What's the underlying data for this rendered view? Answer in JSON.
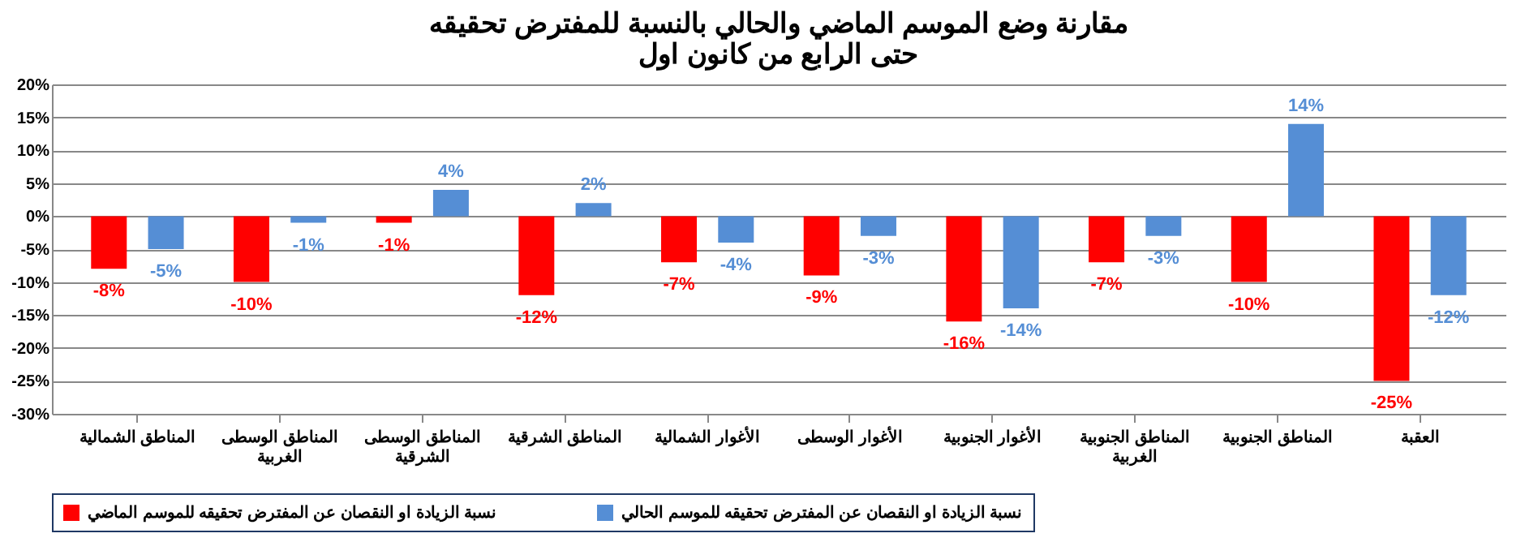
{
  "chart_data": {
    "type": "bar",
    "title": [
      "مقارنة وضع الموسم الماضي والحالي بالنسبة للمفترض تحقيقه",
      "حتى الرابع من كانون اول"
    ],
    "categories": [
      "المناطق الشمالية",
      "المناطق الوسطى الغربية",
      "المناطق الوسطى الشرقية",
      "المناطق الشرقية",
      "الأغوار الشمالية",
      "الأغوار الوسطى",
      "الأغوار الجنوبية",
      "المناطق الجنوبية الغربية",
      "المناطق الجنوبية",
      "العقبة"
    ],
    "series": [
      {
        "name": "نسبة الزيادة او النقصان عن المفترض تحقيقه للموسم الماضي",
        "color": "#ff0000",
        "values": [
          -8,
          -10,
          -1,
          -12,
          -7,
          -9,
          -16,
          -7,
          -10,
          -25
        ],
        "value_labels": [
          "-8%",
          "-10%",
          "-1%",
          "-12%",
          "-7%",
          "-9%",
          "-16%",
          "-7%",
          "-10%",
          "-25%"
        ]
      },
      {
        "name": "نسبة الزيادة او النقصان عن المفترض تحقيقه للموسم الحالي",
        "color": "#558ed5",
        "values": [
          -5,
          -1,
          4,
          2,
          -4,
          -3,
          -14,
          -3,
          14,
          -12
        ],
        "value_labels": [
          "-5%",
          "-1%",
          "4%",
          "2%",
          "-4%",
          "-3%",
          "-14%",
          "-3%",
          "14%",
          "-12%"
        ]
      }
    ],
    "ylim": [
      -30,
      20
    ],
    "yticks": [
      {
        "value": 20,
        "label": "20%"
      },
      {
        "value": 15,
        "label": "15%"
      },
      {
        "value": 10,
        "label": "10%"
      },
      {
        "value": 5,
        "label": "5%"
      },
      {
        "value": 0,
        "label": "0%"
      },
      {
        "value": -5,
        "label": "-5%"
      },
      {
        "value": -10,
        "label": "-10%"
      },
      {
        "value": -15,
        "label": "-15%"
      },
      {
        "value": -20,
        "label": "-20%"
      },
      {
        "value": -25,
        "label": "-25%"
      },
      {
        "value": -30,
        "label": "-30%"
      }
    ],
    "grid": "y",
    "legend": "bottom"
  }
}
